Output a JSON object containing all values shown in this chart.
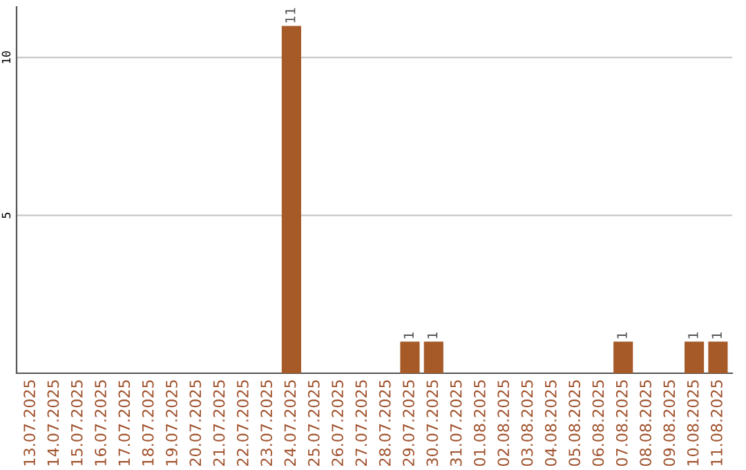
{
  "chart_data": {
    "type": "bar",
    "categories": [
      "13.07.2025",
      "14.07.2025",
      "15.07.2025",
      "16.07.2025",
      "17.07.2025",
      "18.07.2025",
      "19.07.2025",
      "20.07.2025",
      "21.07.2025",
      "22.07.2025",
      "23.07.2025",
      "24.07.2025",
      "25.07.2025",
      "26.07.2025",
      "27.07.2025",
      "28.07.2025",
      "29.07.2025",
      "30.07.2025",
      "31.07.2025",
      "01.08.2025",
      "02.08.2025",
      "03.08.2025",
      "04.08.2025",
      "05.08.2025",
      "06.08.2025",
      "07.08.2025",
      "08.08.2025",
      "09.08.2025",
      "10.08.2025",
      "11.08.2025"
    ],
    "values": [
      0,
      0,
      0,
      0,
      0,
      0,
      0,
      0,
      0,
      0,
      0,
      11,
      0,
      0,
      0,
      0,
      1,
      1,
      0,
      0,
      0,
      0,
      0,
      0,
      0,
      1,
      0,
      0,
      1,
      1
    ],
    "value_labels": [
      null,
      null,
      null,
      null,
      null,
      null,
      null,
      null,
      null,
      null,
      null,
      "11",
      null,
      null,
      null,
      null,
      "1",
      "1",
      null,
      null,
      null,
      null,
      null,
      null,
      null,
      "1",
      null,
      null,
      "1",
      "1"
    ],
    "color": "#a55a28",
    "ylim": [
      0,
      11.6
    ],
    "yticks": [
      5,
      10
    ],
    "grid": "y"
  }
}
